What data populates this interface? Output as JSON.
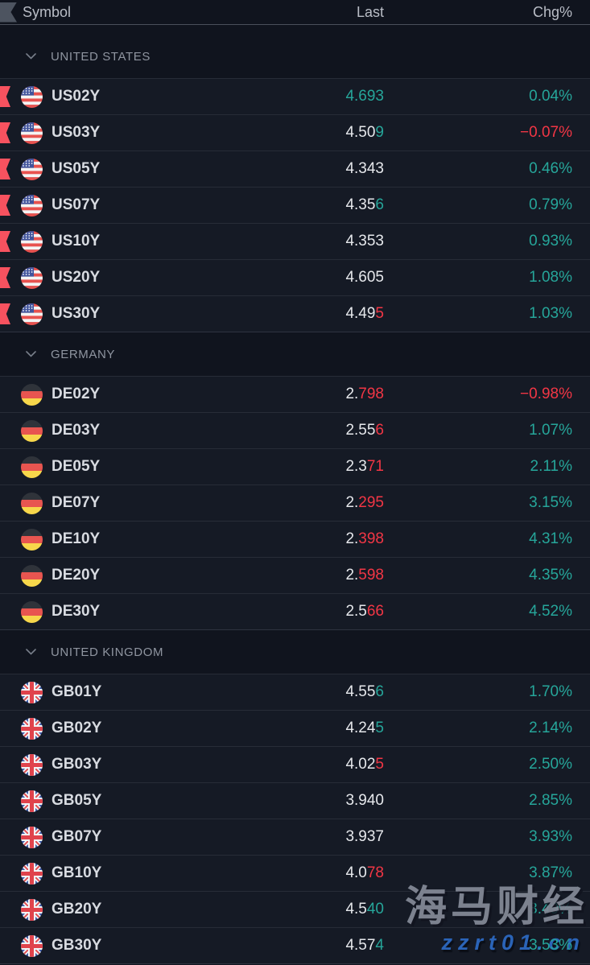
{
  "header": {
    "symbol_label": "Symbol",
    "last_label": "Last",
    "chg_label": "Chg%"
  },
  "colors": {
    "up": "#26a69a",
    "down": "#f23645",
    "marker": "#f7525f",
    "watermark_gray": "#858b98",
    "watermark_blue": "#2c68c0"
  },
  "sections": [
    {
      "label": "UNITED STATES",
      "rows": [
        {
          "symbol": "US02Y",
          "country": "us",
          "flagged": true,
          "last_base": "",
          "last_tail": "4.693",
          "tail_dir": "up",
          "chg": "0.04%",
          "chg_dir": "up"
        },
        {
          "symbol": "US03Y",
          "country": "us",
          "flagged": true,
          "last_base": "4.50",
          "last_tail": "9",
          "tail_dir": "up",
          "chg": "−0.07%",
          "chg_dir": "down"
        },
        {
          "symbol": "US05Y",
          "country": "us",
          "flagged": true,
          "last_base": "4.343",
          "last_tail": "",
          "tail_dir": null,
          "chg": "0.46%",
          "chg_dir": "up"
        },
        {
          "symbol": "US07Y",
          "country": "us",
          "flagged": true,
          "last_base": "4.35",
          "last_tail": "6",
          "tail_dir": "up",
          "chg": "0.79%",
          "chg_dir": "up"
        },
        {
          "symbol": "US10Y",
          "country": "us",
          "flagged": true,
          "last_base": "4.353",
          "last_tail": "",
          "tail_dir": null,
          "chg": "0.93%",
          "chg_dir": "up"
        },
        {
          "symbol": "US20Y",
          "country": "us",
          "flagged": true,
          "last_base": "4.605",
          "last_tail": "",
          "tail_dir": null,
          "chg": "1.08%",
          "chg_dir": "up"
        },
        {
          "symbol": "US30Y",
          "country": "us",
          "flagged": true,
          "last_base": "4.49",
          "last_tail": "5",
          "tail_dir": "down",
          "chg": "1.03%",
          "chg_dir": "up"
        }
      ]
    },
    {
      "label": "GERMANY",
      "rows": [
        {
          "symbol": "DE02Y",
          "country": "de",
          "flagged": false,
          "last_base": "2.",
          "last_tail": "798",
          "tail_dir": "down",
          "chg": "−0.98%",
          "chg_dir": "down"
        },
        {
          "symbol": "DE03Y",
          "country": "de",
          "flagged": false,
          "last_base": "2.55",
          "last_tail": "6",
          "tail_dir": "down",
          "chg": "1.07%",
          "chg_dir": "up"
        },
        {
          "symbol": "DE05Y",
          "country": "de",
          "flagged": false,
          "last_base": "2.3",
          "last_tail": "71",
          "tail_dir": "down",
          "chg": "2.11%",
          "chg_dir": "up"
        },
        {
          "symbol": "DE07Y",
          "country": "de",
          "flagged": false,
          "last_base": "2.",
          "last_tail": "295",
          "tail_dir": "down",
          "chg": "3.15%",
          "chg_dir": "up"
        },
        {
          "symbol": "DE10Y",
          "country": "de",
          "flagged": false,
          "last_base": "2.",
          "last_tail": "398",
          "tail_dir": "down",
          "chg": "4.31%",
          "chg_dir": "up"
        },
        {
          "symbol": "DE20Y",
          "country": "de",
          "flagged": false,
          "last_base": "2.",
          "last_tail": "598",
          "tail_dir": "down",
          "chg": "4.35%",
          "chg_dir": "up"
        },
        {
          "symbol": "DE30Y",
          "country": "de",
          "flagged": false,
          "last_base": "2.5",
          "last_tail": "66",
          "tail_dir": "down",
          "chg": "4.52%",
          "chg_dir": "up"
        }
      ]
    },
    {
      "label": "UNITED KINGDOM",
      "rows": [
        {
          "symbol": "GB01Y",
          "country": "gb",
          "flagged": false,
          "last_base": "4.55",
          "last_tail": "6",
          "tail_dir": "up",
          "chg": "1.70%",
          "chg_dir": "up"
        },
        {
          "symbol": "GB02Y",
          "country": "gb",
          "flagged": false,
          "last_base": "4.24",
          "last_tail": "5",
          "tail_dir": "up",
          "chg": "2.14%",
          "chg_dir": "up"
        },
        {
          "symbol": "GB03Y",
          "country": "gb",
          "flagged": false,
          "last_base": "4.02",
          "last_tail": "5",
          "tail_dir": "down",
          "chg": "2.50%",
          "chg_dir": "up"
        },
        {
          "symbol": "GB05Y",
          "country": "gb",
          "flagged": false,
          "last_base": "3.940",
          "last_tail": "",
          "tail_dir": null,
          "chg": "2.85%",
          "chg_dir": "up"
        },
        {
          "symbol": "GB07Y",
          "country": "gb",
          "flagged": false,
          "last_base": "3.937",
          "last_tail": "",
          "tail_dir": null,
          "chg": "3.93%",
          "chg_dir": "up"
        },
        {
          "symbol": "GB10Y",
          "country": "gb",
          "flagged": false,
          "last_base": "4.0",
          "last_tail": "78",
          "tail_dir": "down",
          "chg": "3.87%",
          "chg_dir": "up"
        },
        {
          "symbol": "GB20Y",
          "country": "gb",
          "flagged": false,
          "last_base": "4.5",
          "last_tail": "40",
          "tail_dir": "up",
          "chg": "3.49%",
          "chg_dir": "up"
        },
        {
          "symbol": "GB30Y",
          "country": "gb",
          "flagged": false,
          "last_base": "4.57",
          "last_tail": "4",
          "tail_dir": "up",
          "chg": "3.53%",
          "chg_dir": "up"
        }
      ]
    }
  ],
  "watermark": {
    "line1": "海马财经",
    "line2": "zzrt01.cn"
  }
}
